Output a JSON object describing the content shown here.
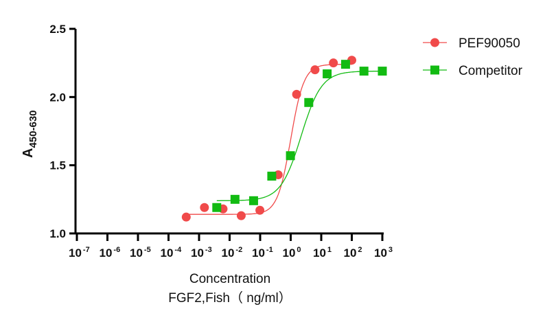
{
  "chart_data": {
    "type": "scatter",
    "title": "",
    "xlabel": "Concentration",
    "xlabel_line2": "FGF2,Fish（ ng/ml）",
    "ylabel_main": "A",
    "ylabel_sub": "450-630",
    "xscale": "log",
    "xlim_log10": [
      -7,
      3
    ],
    "ylim": [
      1.0,
      2.5
    ],
    "x_ticks": [
      {
        "base": "10",
        "exp": "-7"
      },
      {
        "base": "10",
        "exp": "-6"
      },
      {
        "base": "10",
        "exp": "-5"
      },
      {
        "base": "10",
        "exp": "-4"
      },
      {
        "base": "10",
        "exp": "-3"
      },
      {
        "base": "10",
        "exp": "-2"
      },
      {
        "base": "10",
        "exp": "-1"
      },
      {
        "base": "10",
        "exp": "0"
      },
      {
        "base": "10",
        "exp": "1"
      },
      {
        "base": "10",
        "exp": "2"
      },
      {
        "base": "10",
        "exp": "3"
      }
    ],
    "y_ticks": [
      "1.0",
      "1.5",
      "2.0",
      "2.5"
    ],
    "grid": false,
    "legend_position": "top-right",
    "series": [
      {
        "name": "PEF90050",
        "color": "#f04a4a",
        "marker": "circle",
        "x": [
          0.00038,
          0.0015,
          0.0061,
          0.024,
          0.098,
          0.39,
          1.56,
          6.25,
          25,
          100
        ],
        "y": [
          1.12,
          1.19,
          1.18,
          1.13,
          1.17,
          1.43,
          2.02,
          2.2,
          2.25,
          2.27
        ],
        "fit": {
          "bottom": 1.14,
          "top": 2.24,
          "ec50": 1.0,
          "hill": 2.0
        }
      },
      {
        "name": "Competitor",
        "color": "#12bb12",
        "marker": "square",
        "x": [
          0.0038,
          0.015,
          0.061,
          0.24,
          0.98,
          3.9,
          15.6,
          62.5,
          250,
          1000
        ],
        "y": [
          1.19,
          1.25,
          1.24,
          1.42,
          1.57,
          1.96,
          2.17,
          2.24,
          2.19,
          2.19
        ],
        "fit": {
          "bottom": 1.24,
          "top": 2.19,
          "ec50": 2.2,
          "hill": 1.3
        }
      }
    ]
  }
}
